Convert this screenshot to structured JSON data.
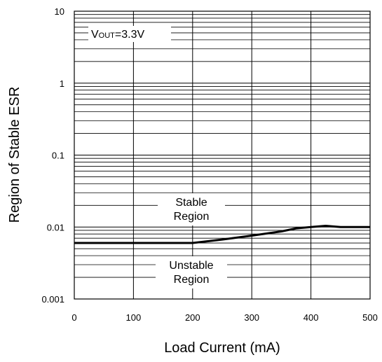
{
  "chart_data": {
    "type": "line",
    "title": "",
    "xlabel": "Load Current (mA)",
    "ylabel": "Region of Stable ESR",
    "xlim": [
      0,
      500
    ],
    "ylim": [
      0.001,
      10
    ],
    "y_scale": "log",
    "grid": true,
    "x_ticks": [
      {
        "value": 0,
        "label": "0"
      },
      {
        "value": 100,
        "label": "100"
      },
      {
        "value": 200,
        "label": "200"
      },
      {
        "value": 300,
        "label": "300"
      },
      {
        "value": 400,
        "label": "400"
      },
      {
        "value": 500,
        "label": "500"
      }
    ],
    "y_ticks": [
      {
        "value": 10,
        "label": "10"
      },
      {
        "value": 1,
        "label": "1"
      },
      {
        "value": 0.1,
        "label": "0.1"
      },
      {
        "value": 0.01,
        "label": "0.01"
      },
      {
        "value": 0.001,
        "label": "0.001"
      }
    ],
    "series": [
      {
        "color": "#000000",
        "x": [
          0,
          100,
          200,
          250,
          300,
          350,
          375,
          400,
          425,
          450,
          500
        ],
        "y": [
          0.006,
          0.006,
          0.006,
          0.0067,
          0.0076,
          0.0087,
          0.0096,
          0.01,
          0.0104,
          0.01,
          0.01
        ]
      }
    ],
    "annotations": {
      "vout": {
        "main": "V",
        "sub": "OUT",
        "rest": "=3.3V"
      },
      "stable": [
        "Stable",
        "Region"
      ],
      "unstable": [
        "Unstable",
        "Region"
      ]
    }
  }
}
